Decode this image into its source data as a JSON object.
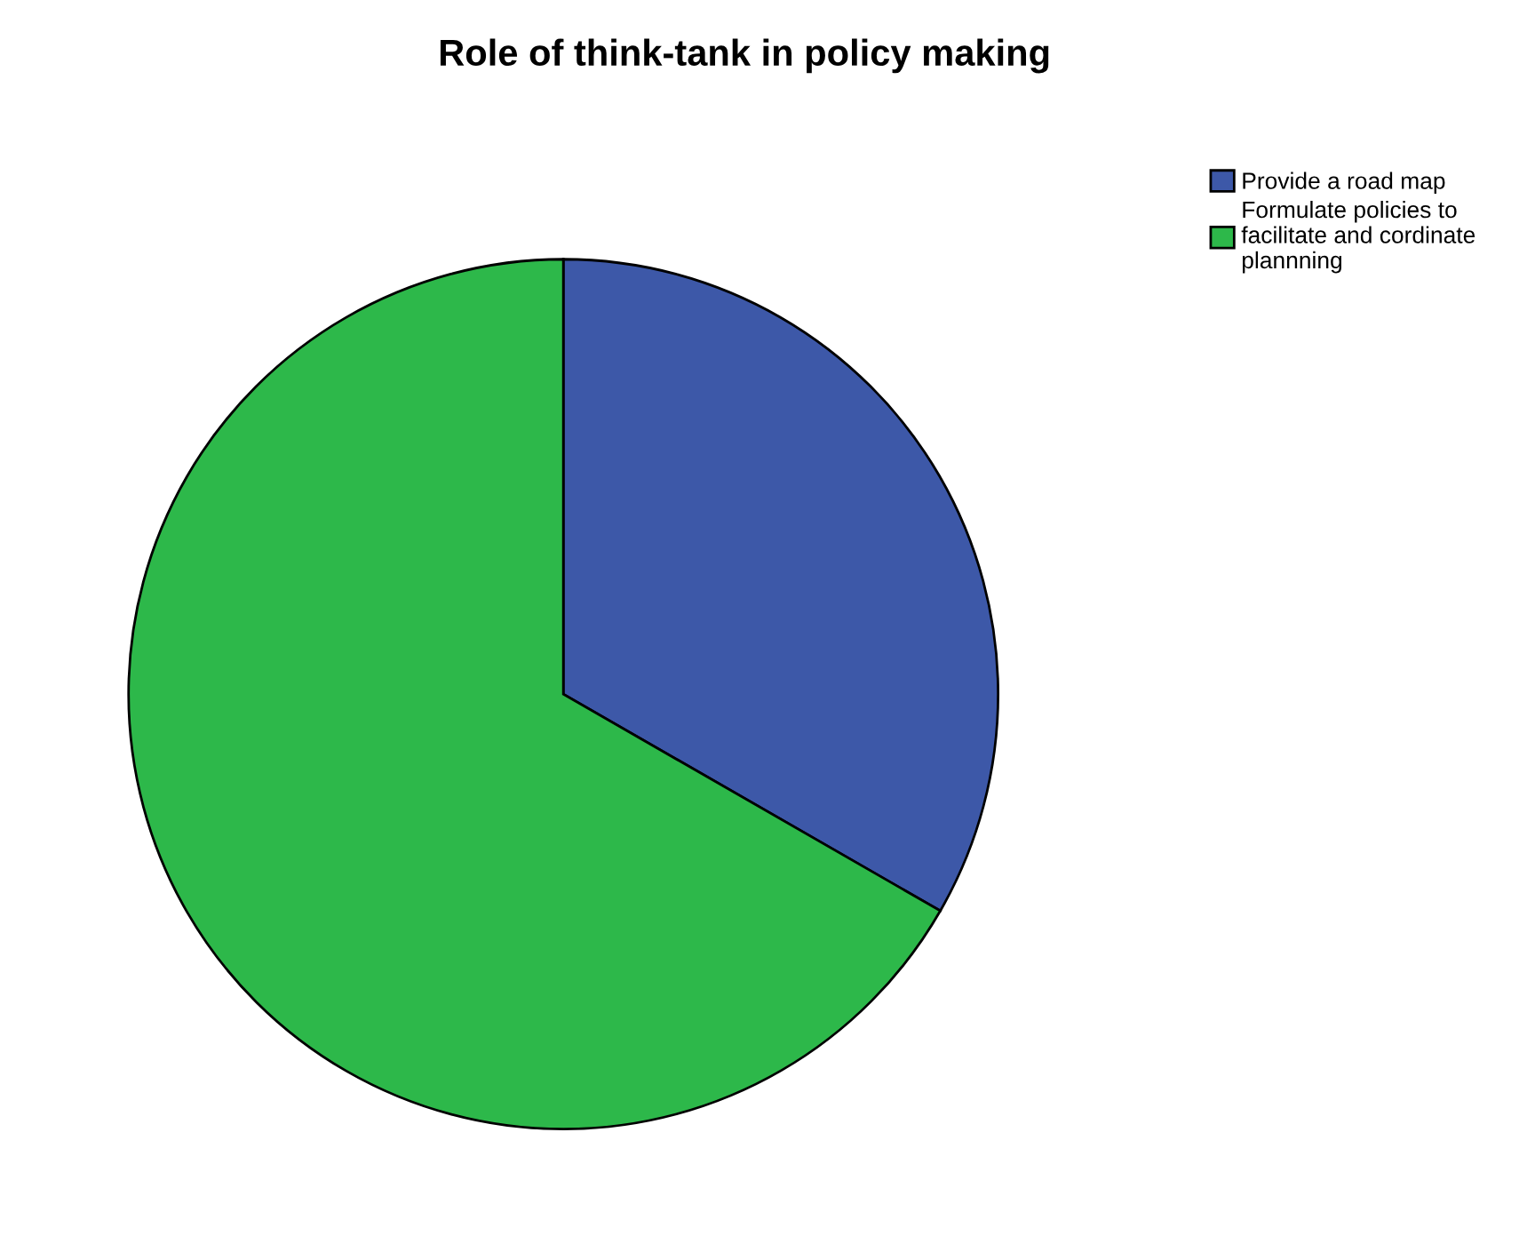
{
  "chart_data": {
    "type": "pie",
    "title": "Role of think-tank in policy making",
    "categories": [
      "Provide a road map",
      "Formulate policies to\nfacilitate and cordinate\nplannning"
    ],
    "values": [
      33.3,
      66.7
    ],
    "colors": [
      "#3d58a8",
      "#2db84a"
    ],
    "legend": "top right"
  }
}
